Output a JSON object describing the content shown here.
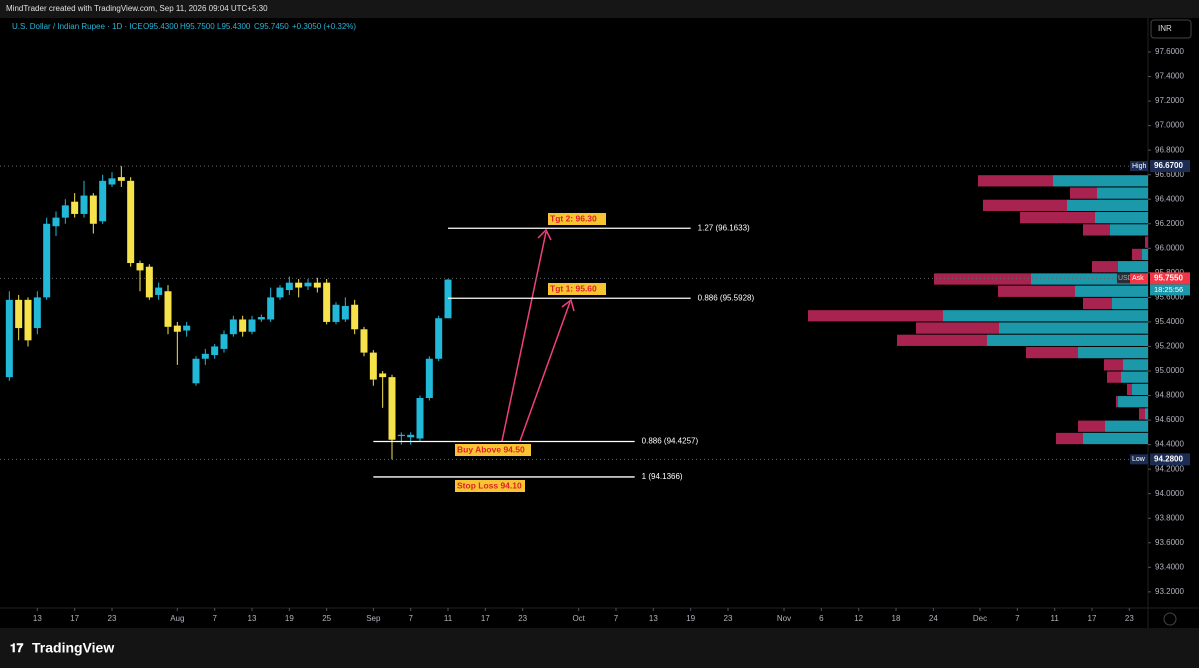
{
  "header": {
    "credit": "MindTrader created with TradingView.com, Sep 11, 2026 09:04 UTC+5:30",
    "symbol": "U.S. Dollar / Indian Rupee · 1D · ICE",
    "ohlc": [
      "O95.4300",
      "H95.7500",
      "L95.4300",
      "C95.7450"
    ],
    "change": "+0.3050 (+0.32%)",
    "currency": "INR",
    "brand": "TradingView"
  },
  "chart_data": {
    "type": "candlestick",
    "x": [
      "2026-07-08",
      "2026-07-09",
      "2026-07-10",
      "2026-07-13",
      "2026-07-14",
      "2026-07-15",
      "2026-07-16",
      "2026-07-17",
      "2026-07-20",
      "2026-07-21",
      "2026-07-22",
      "2026-07-23",
      "2026-07-24",
      "2026-07-27",
      "2026-07-28",
      "2026-07-29",
      "2026-07-30",
      "2026-07-31",
      "2026-08-03",
      "2026-08-04",
      "2026-08-05",
      "2026-08-06",
      "2026-08-07",
      "2026-08-10",
      "2026-08-11",
      "2026-08-12",
      "2026-08-13",
      "2026-08-14",
      "2026-08-17",
      "2026-08-18",
      "2026-08-19",
      "2026-08-20",
      "2026-08-21",
      "2026-08-24",
      "2026-08-25",
      "2026-08-26",
      "2026-08-27",
      "2026-08-28",
      "2026-08-31",
      "2026-09-01",
      "2026-09-02",
      "2026-09-03",
      "2026-09-04",
      "2026-09-07",
      "2026-09-08",
      "2026-09-09",
      "2026-09-10",
      "2026-09-11"
    ],
    "open": [
      94.95,
      95.58,
      95.58,
      95.35,
      95.6,
      96.18,
      96.25,
      96.38,
      96.28,
      96.43,
      96.22,
      96.52,
      96.58,
      96.55,
      95.88,
      95.85,
      95.62,
      95.65,
      95.37,
      95.33,
      94.9,
      95.1,
      95.13,
      95.18,
      95.3,
      95.42,
      95.32,
      95.42,
      95.42,
      95.6,
      95.66,
      95.72,
      95.69,
      95.72,
      95.72,
      95.4,
      95.42,
      95.54,
      95.34,
      95.15,
      94.98,
      94.95,
      94.47,
      94.46,
      94.45,
      94.78,
      95.1,
      95.43
    ],
    "high": [
      95.65,
      95.62,
      95.6,
      95.65,
      96.25,
      96.3,
      96.4,
      96.45,
      96.55,
      96.45,
      96.6,
      96.62,
      96.67,
      96.58,
      95.9,
      95.87,
      95.72,
      95.7,
      95.4,
      95.4,
      95.12,
      95.18,
      95.22,
      95.33,
      95.45,
      95.45,
      95.45,
      95.46,
      95.68,
      95.7,
      95.77,
      95.75,
      95.75,
      95.76,
      95.75,
      95.56,
      95.6,
      95.58,
      95.36,
      95.17,
      95.0,
      94.97,
      94.5,
      94.5,
      94.8,
      95.12,
      95.45,
      95.75
    ],
    "low": [
      94.92,
      95.25,
      95.2,
      95.3,
      95.58,
      96.1,
      96.2,
      96.25,
      96.25,
      96.12,
      96.2,
      96.5,
      96.5,
      95.85,
      95.65,
      95.58,
      95.58,
      95.3,
      95.05,
      95.28,
      94.88,
      95.05,
      95.1,
      95.15,
      95.28,
      95.28,
      95.3,
      95.4,
      95.4,
      95.58,
      95.62,
      95.6,
      95.66,
      95.64,
      95.38,
      95.38,
      95.4,
      95.3,
      95.12,
      94.88,
      94.7,
      94.28,
      94.4,
      94.4,
      94.43,
      94.76,
      95.08,
      95.43
    ],
    "close": [
      95.58,
      95.35,
      95.25,
      95.6,
      96.2,
      96.25,
      96.35,
      96.28,
      96.43,
      96.2,
      96.55,
      96.57,
      96.55,
      95.88,
      95.82,
      95.6,
      95.68,
      95.36,
      95.32,
      95.37,
      95.1,
      95.14,
      95.2,
      95.3,
      95.42,
      95.32,
      95.42,
      95.44,
      95.6,
      95.68,
      95.72,
      95.68,
      95.72,
      95.68,
      95.4,
      95.54,
      95.53,
      95.34,
      95.15,
      94.93,
      94.95,
      94.44,
      94.48,
      94.48,
      94.78,
      95.1,
      95.43,
      95.745
    ],
    "up_color": "#22b8d8",
    "down_color": "#f6e24a",
    "ylim": [
      93.093,
      97.877
    ],
    "yticks": [
      {
        "value": 97.6,
        "label": "97.6000"
      },
      {
        "value": 97.4,
        "label": "97.4000"
      },
      {
        "value": 97.2,
        "label": "97.2000"
      },
      {
        "value": 97,
        "label": "97.0000"
      },
      {
        "value": 96.8,
        "label": "96.8000"
      },
      {
        "value": 96.6,
        "label": "96.6000"
      },
      {
        "value": 96.4,
        "label": "96.4000"
      },
      {
        "value": 96.2,
        "label": "96.2000"
      },
      {
        "value": 96,
        "label": "96.0000"
      },
      {
        "value": 95.8,
        "label": "95.8000"
      },
      {
        "value": 95.6,
        "label": "95.6000"
      },
      {
        "value": 95.4,
        "label": "95.4000"
      },
      {
        "value": 95.2,
        "label": "95.2000"
      },
      {
        "value": 95,
        "label": "95.0000"
      },
      {
        "value": 94.8,
        "label": "94.8000"
      },
      {
        "value": 94.6,
        "label": "94.6000"
      },
      {
        "value": 94.4,
        "label": "94.4000"
      },
      {
        "value": 94.2,
        "label": "94.2000"
      },
      {
        "value": 94,
        "label": "94.0000"
      },
      {
        "value": 93.8,
        "label": "93.8000"
      },
      {
        "value": 93.6,
        "label": "93.6000"
      },
      {
        "value": 93.4,
        "label": "93.4000"
      },
      {
        "value": 93.2,
        "label": "93.2000"
      }
    ],
    "xlim": [
      "2026-07-07",
      "2026-12-25"
    ],
    "xticks": [
      {
        "value": "2026-07-13",
        "label": "13"
      },
      {
        "value": "2026-07-17",
        "label": "17"
      },
      {
        "value": "2026-07-23",
        "label": "23"
      },
      {
        "value": "2026-08-03",
        "label": "Aug"
      },
      {
        "value": "2026-08-07",
        "label": "7"
      },
      {
        "value": "2026-08-13",
        "label": "13"
      },
      {
        "value": "2026-08-19",
        "label": "19"
      },
      {
        "value": "2026-08-25",
        "label": "25"
      },
      {
        "value": "2026-09-01",
        "label": "Sep"
      },
      {
        "value": "2026-09-07",
        "label": "7"
      },
      {
        "value": "2026-09-11",
        "label": "11"
      },
      {
        "value": "2026-09-17",
        "label": "17"
      },
      {
        "value": "2026-09-23",
        "label": "23"
      },
      {
        "value": "2026-10-01",
        "label": "Oct"
      },
      {
        "value": "2026-10-07",
        "label": "7"
      },
      {
        "value": "2026-10-13",
        "label": "13"
      },
      {
        "value": "2026-10-19",
        "label": "19"
      },
      {
        "value": "2026-10-23",
        "label": "23"
      },
      {
        "value": "2026-11-02",
        "label": "Nov"
      },
      {
        "value": "2026-11-06",
        "label": "6"
      },
      {
        "value": "2026-11-12",
        "label": "12"
      },
      {
        "value": "2026-11-18",
        "label": "18"
      },
      {
        "value": "2026-11-24",
        "label": "24"
      },
      {
        "value": "2026-12-01",
        "label": "Dec"
      },
      {
        "value": "2026-12-07",
        "label": "7"
      },
      {
        "value": "2026-12-11",
        "label": "11"
      },
      {
        "value": "2026-12-17",
        "label": "17"
      },
      {
        "value": "2026-12-23",
        "label": "23"
      }
    ],
    "volume_profile": {
      "prices": [
        96.55,
        96.45,
        96.35,
        96.25,
        96.15,
        96.05,
        95.95,
        95.85,
        95.75,
        95.65,
        95.55,
        95.45,
        95.35,
        95.25,
        95.15,
        95.05,
        94.95,
        94.85,
        94.75,
        94.65,
        94.55,
        94.45
      ],
      "buy": [
        95,
        51,
        81,
        53,
        38,
        0,
        6,
        30,
        117,
        73,
        36,
        205,
        149,
        161,
        70,
        25,
        27,
        16,
        30,
        3,
        43,
        65
      ],
      "sell": [
        75,
        27,
        84,
        75,
        27,
        3,
        10,
        26,
        97,
        77,
        29,
        135,
        83,
        90,
        52,
        19,
        14,
        5,
        2,
        6,
        27,
        27
      ],
      "buy_color": "#1b98aa",
      "sell_color": "#a8234f",
      "step": 0.1
    },
    "levels": [
      {
        "label": "1.27 (96.1633)",
        "price": 96.1633,
        "from": "2026-09-11",
        "to": "2026-10-19"
      },
      {
        "label": "0.886 (95.5928)",
        "price": 95.5928,
        "from": "2026-09-11",
        "to": "2026-10-19"
      },
      {
        "label": "0.886 (94.4257)",
        "price": 94.4257,
        "from": "2026-09-01",
        "to": "2026-10-09"
      },
      {
        "label": "1 (94.1366)",
        "price": 94.1366,
        "from": "2026-09-01",
        "to": "2026-10-09"
      }
    ],
    "annotations": [
      "Tgt 2: 96.30",
      "Tgt 1: 95.60",
      "Buy Above 94.50",
      "Stop Loss 94.10"
    ],
    "price_tags": [
      {
        "name": "High",
        "price": 96.67,
        "label": "96.6700",
        "color": "#1d2c52"
      },
      {
        "name": "Ask",
        "price": 95.755,
        "label": "95.7550",
        "color": "#f23645",
        "currency": "USD",
        "countdown": "18:25:56"
      },
      {
        "name": "Low",
        "price": 94.28,
        "label": "94.2800",
        "color": "#1d2c52"
      }
    ]
  }
}
